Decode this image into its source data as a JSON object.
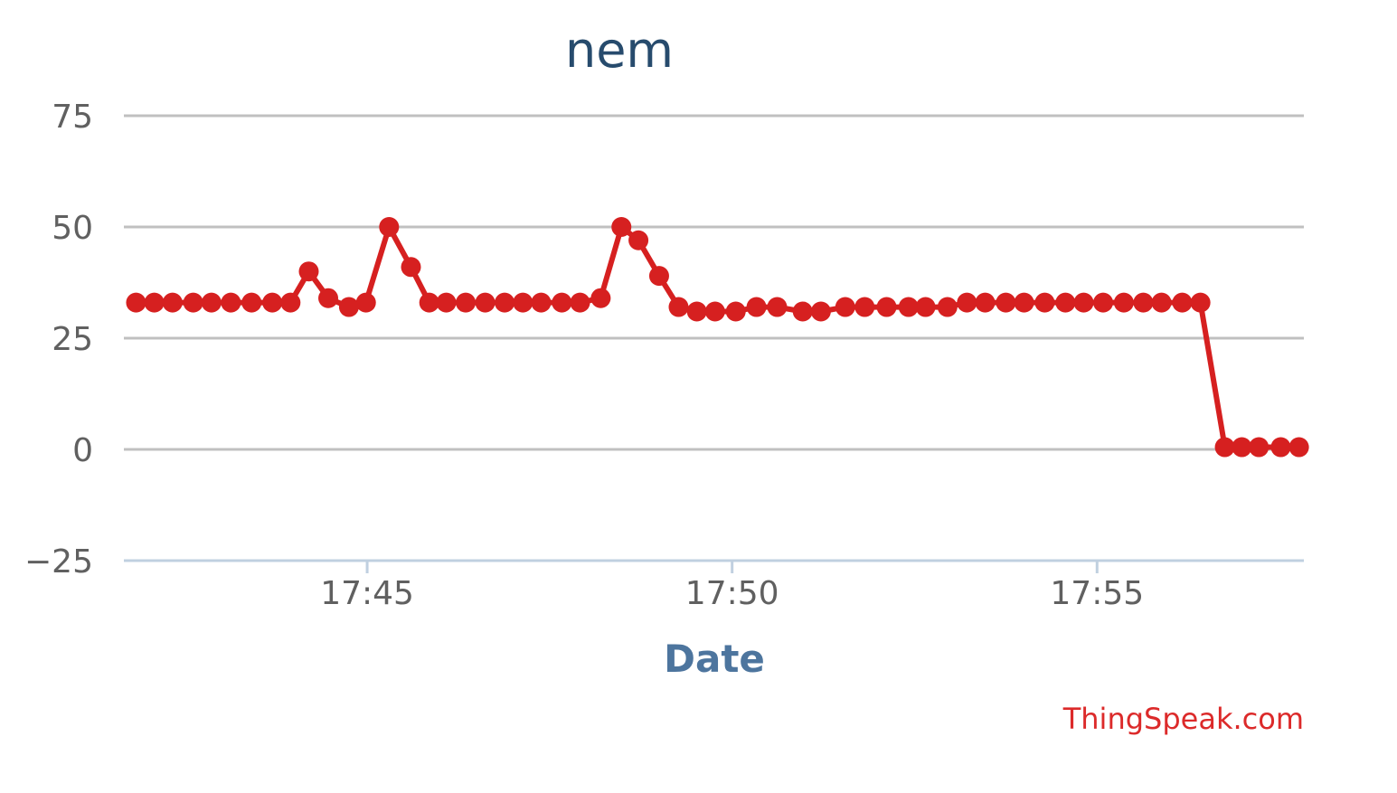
{
  "chart_data": {
    "type": "line",
    "title": "nem",
    "xlabel": "Date",
    "ylabel": "",
    "ylim": [
      -25,
      75
    ],
    "yticks": [
      75,
      50,
      25,
      0,
      -25
    ],
    "ytick_labels": [
      "75",
      "50",
      "25",
      "0",
      "−25"
    ],
    "xlim": [
      "17:41:40",
      "17:57:50"
    ],
    "xticks": [
      "17:45",
      "17:50",
      "17:55"
    ],
    "grid": true,
    "legend": "none",
    "color": "#d62020",
    "series": [
      {
        "x": [
          "17:41:50",
          "17:42:05",
          "17:42:20",
          "17:42:37",
          "17:42:52",
          "17:43:08",
          "17:43:25",
          "17:43:42",
          "17:43:57",
          "17:44:12",
          "17:44:28",
          "17:44:45",
          "17:44:59",
          "17:45:18",
          "17:45:36",
          "17:45:51",
          "17:46:05",
          "17:46:21",
          "17:46:37",
          "17:46:53",
          "17:47:08",
          "17:47:23",
          "17:47:40",
          "17:47:55",
          "17:48:12",
          "17:48:29",
          "17:48:43",
          "17:49:00",
          "17:49:16",
          "17:49:31",
          "17:49:46",
          "17:50:03",
          "17:50:20",
          "17:50:37",
          "17:50:58",
          "17:51:13",
          "17:51:33",
          "17:51:49",
          "17:52:07",
          "17:52:25",
          "17:52:39",
          "17:52:57",
          "17:53:13",
          "17:53:28",
          "17:53:45",
          "17:54:00",
          "17:54:17",
          "17:54:34",
          "17:54:49",
          "17:55:05",
          "17:55:22",
          "17:55:38",
          "17:55:53",
          "17:56:10",
          "17:56:25",
          "17:56:45",
          "17:56:59",
          "17:57:13",
          "17:57:31",
          "17:57:46"
        ],
        "values": [
          33,
          33,
          33,
          33,
          33,
          33,
          33,
          33,
          33,
          40,
          34,
          32,
          33,
          50,
          41,
          33,
          33,
          33,
          33,
          33,
          33,
          33,
          33,
          33,
          34,
          50,
          47,
          39,
          32,
          31,
          31,
          31,
          32,
          32,
          31,
          31,
          32,
          32,
          32,
          32,
          32,
          32,
          33,
          33,
          33,
          33,
          33,
          33,
          33,
          33,
          33,
          33,
          33,
          33,
          33,
          0.5,
          0.5,
          0.5,
          0.5,
          0.5
        ]
      }
    ]
  },
  "credit": "ThingSpeak.com"
}
